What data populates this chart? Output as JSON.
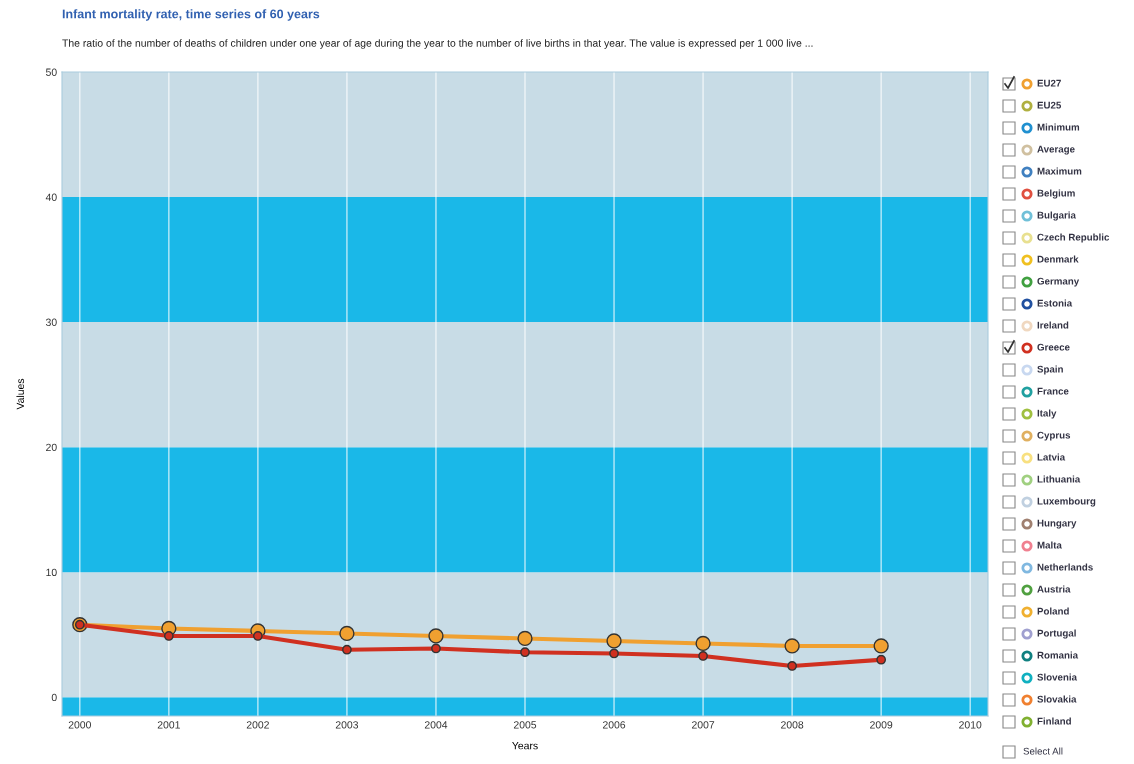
{
  "chart_data": {
    "type": "line",
    "title": "Infant mortality rate, time series of 60 years",
    "subtitle": "The ratio of the number of deaths of children under one year of age during the year to the number of live births in that year. The value is expressed per 1 000 live ...",
    "xlabel": "Years",
    "ylabel": "Values",
    "x": [
      2000,
      2001,
      2002,
      2003,
      2004,
      2005,
      2006,
      2007,
      2008,
      2009
    ],
    "series": [
      {
        "name": "EU27",
        "color": "#f0a030",
        "values": [
          5.8,
          5.5,
          5.3,
          5.1,
          4.9,
          4.7,
          4.5,
          4.3,
          4.1,
          4.1
        ]
      },
      {
        "name": "EU25",
        "color": "#b0b040",
        "values": [
          null,
          null,
          null,
          null,
          null,
          null,
          null,
          null,
          null,
          null
        ]
      },
      {
        "name": "Minimum",
        "color": "#2090d0",
        "values": [
          null,
          null,
          null,
          null,
          null,
          null,
          null,
          null,
          null,
          null
        ]
      },
      {
        "name": "Average",
        "color": "#d0c0a0",
        "values": [
          null,
          null,
          null,
          null,
          null,
          null,
          null,
          null,
          null,
          null
        ]
      },
      {
        "name": "Maximum",
        "color": "#4080c0",
        "values": [
          null,
          null,
          null,
          null,
          null,
          null,
          null,
          null,
          null,
          null
        ]
      },
      {
        "name": "Belgium",
        "color": "#e05040",
        "values": [
          null,
          null,
          null,
          null,
          null,
          null,
          null,
          null,
          null,
          null
        ]
      },
      {
        "name": "Bulgaria",
        "color": "#70c0d8",
        "values": [
          null,
          null,
          null,
          null,
          null,
          null,
          null,
          null,
          null,
          null
        ]
      },
      {
        "name": "Czech Republic",
        "color": "#e8e090",
        "values": [
          null,
          null,
          null,
          null,
          null,
          null,
          null,
          null,
          null,
          null
        ]
      },
      {
        "name": "Denmark",
        "color": "#f0c020",
        "values": [
          null,
          null,
          null,
          null,
          null,
          null,
          null,
          null,
          null,
          null
        ]
      },
      {
        "name": "Germany",
        "color": "#40a040",
        "values": [
          null,
          null,
          null,
          null,
          null,
          null,
          null,
          null,
          null,
          null
        ]
      },
      {
        "name": "Estonia",
        "color": "#2050a0",
        "values": [
          null,
          null,
          null,
          null,
          null,
          null,
          null,
          null,
          null,
          null
        ]
      },
      {
        "name": "Ireland",
        "color": "#f0d8c0",
        "values": [
          null,
          null,
          null,
          null,
          null,
          null,
          null,
          null,
          null,
          null
        ]
      },
      {
        "name": "Greece",
        "color": "#d03020",
        "values": [
          5.8,
          4.9,
          4.9,
          3.8,
          3.9,
          3.6,
          3.5,
          3.3,
          2.5,
          3.0
        ]
      },
      {
        "name": "Spain",
        "color": "#c8d8f0",
        "values": [
          null,
          null,
          null,
          null,
          null,
          null,
          null,
          null,
          null,
          null
        ]
      },
      {
        "name": "France",
        "color": "#20a0a0",
        "values": [
          null,
          null,
          null,
          null,
          null,
          null,
          null,
          null,
          null,
          null
        ]
      },
      {
        "name": "Italy",
        "color": "#a0c040",
        "values": [
          null,
          null,
          null,
          null,
          null,
          null,
          null,
          null,
          null,
          null
        ]
      },
      {
        "name": "Cyprus",
        "color": "#e0b060",
        "values": [
          null,
          null,
          null,
          null,
          null,
          null,
          null,
          null,
          null,
          null
        ]
      },
      {
        "name": "Latvia",
        "color": "#f8e080",
        "values": [
          null,
          null,
          null,
          null,
          null,
          null,
          null,
          null,
          null,
          null
        ]
      },
      {
        "name": "Lithuania",
        "color": "#a0d080",
        "values": [
          null,
          null,
          null,
          null,
          null,
          null,
          null,
          null,
          null,
          null
        ]
      },
      {
        "name": "Luxembourg",
        "color": "#c0d0e0",
        "values": [
          null,
          null,
          null,
          null,
          null,
          null,
          null,
          null,
          null,
          null
        ]
      },
      {
        "name": "Hungary",
        "color": "#a08070",
        "values": [
          null,
          null,
          null,
          null,
          null,
          null,
          null,
          null,
          null,
          null
        ]
      },
      {
        "name": "Malta",
        "color": "#f08090",
        "values": [
          null,
          null,
          null,
          null,
          null,
          null,
          null,
          null,
          null,
          null
        ]
      },
      {
        "name": "Netherlands",
        "color": "#80b8e0",
        "values": [
          null,
          null,
          null,
          null,
          null,
          null,
          null,
          null,
          null,
          null
        ]
      },
      {
        "name": "Austria",
        "color": "#50a040",
        "values": [
          null,
          null,
          null,
          null,
          null,
          null,
          null,
          null,
          null,
          null
        ]
      },
      {
        "name": "Poland",
        "color": "#f0b030",
        "values": [
          null,
          null,
          null,
          null,
          null,
          null,
          null,
          null,
          null,
          null
        ]
      },
      {
        "name": "Portugal",
        "color": "#a0a0d0",
        "values": [
          null,
          null,
          null,
          null,
          null,
          null,
          null,
          null,
          null,
          null
        ]
      },
      {
        "name": "Romania",
        "color": "#108080",
        "values": [
          null,
          null,
          null,
          null,
          null,
          null,
          null,
          null,
          null,
          null
        ]
      },
      {
        "name": "Slovenia",
        "color": "#10b0c0",
        "values": [
          null,
          null,
          null,
          null,
          null,
          null,
          null,
          null,
          null,
          null
        ]
      },
      {
        "name": "Slovakia",
        "color": "#f08030",
        "values": [
          null,
          null,
          null,
          null,
          null,
          null,
          null,
          null,
          null,
          null
        ]
      },
      {
        "name": "Finland",
        "color": "#80b030",
        "values": [
          null,
          null,
          null,
          null,
          null,
          null,
          null,
          null,
          null,
          null
        ]
      }
    ],
    "annotations": [
      "Select All"
    ],
    "xlim": [
      1999.8,
      2010.2
    ],
    "ylim": [
      -1.5,
      50
    ],
    "xticks": [
      2000,
      2001,
      2002,
      2003,
      2004,
      2005,
      2006,
      2007,
      2008,
      2009,
      2010
    ],
    "yticks": [
      0,
      10,
      20,
      30,
      40,
      50
    ],
    "bands": [
      {
        "axis": "y",
        "from": -1.5,
        "to": 0,
        "color": "#1ab8e8"
      },
      {
        "axis": "y",
        "from": 0,
        "to": 10,
        "color": "#c8dce6"
      },
      {
        "axis": "y",
        "from": 10,
        "to": 20,
        "color": "#1ab8e8"
      },
      {
        "axis": "y",
        "from": 20,
        "to": 30,
        "color": "#c8dce6"
      },
      {
        "axis": "y",
        "from": 30,
        "to": 40,
        "color": "#1ab8e8"
      },
      {
        "axis": "y",
        "from": 40,
        "to": 50,
        "color": "#c8dce6"
      }
    ],
    "grid": "x",
    "marker": "circle",
    "line_style": "solid",
    "legend": "right"
  }
}
